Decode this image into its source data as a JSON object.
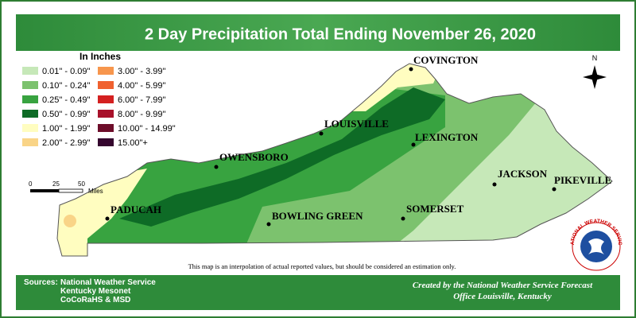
{
  "title": "2 Day Precipitation Total Ending November 26, 2020",
  "legend": {
    "title": "In Inches",
    "items": [
      {
        "label": "0.01\" - 0.09\"",
        "color": "#c6e8b8"
      },
      {
        "label": "0.10\" - 0.24\"",
        "color": "#7cc26e"
      },
      {
        "label": "0.25\" - 0.49\"",
        "color": "#38a340"
      },
      {
        "label": "0.50\" - 0.99\"",
        "color": "#0e6b26"
      },
      {
        "label": "1.00\" - 1.99\"",
        "color": "#fffdc0"
      },
      {
        "label": "2.00\" - 2.99\"",
        "color": "#f9d487"
      },
      {
        "label": "3.00\" - 3.99\"",
        "color": "#f7964d"
      },
      {
        "label": "4.00\" - 5.99\"",
        "color": "#f0612f"
      },
      {
        "label": "6.00\" - 7.99\"",
        "color": "#d42020"
      },
      {
        "label": "8.00\" - 9.99\"",
        "color": "#a8112a"
      },
      {
        "label": "10.00\" - 14.99\"",
        "color": "#6d0d2a"
      },
      {
        "label": "15.00\"+",
        "color": "#35062e"
      }
    ]
  },
  "scale_bar": {
    "ticks": [
      "0",
      "25",
      "50"
    ],
    "unit": "Miles"
  },
  "north_arrow": "N",
  "cities": [
    "COVINGTON",
    "LOUISVILLE",
    "LEXINGTON",
    "OWENSBORO",
    "JACKSON",
    "PIKEVILLE",
    "PADUCAH",
    "BOWLING GREEN",
    "SOMERSET"
  ],
  "disclaimer": "This map is an interpolation of actual reported values, but should be considered an estimation only.",
  "sources": {
    "label": "Sources:",
    "items": [
      "National Weather Service",
      "Kentucky Mesonet",
      "CoCoRaHS & MSD"
    ]
  },
  "credit": [
    "Created by the National Weather Service Forecast",
    "Office Louisville, Kentucky"
  ],
  "logo_text": "NATIONAL WEATHER SERVICE"
}
